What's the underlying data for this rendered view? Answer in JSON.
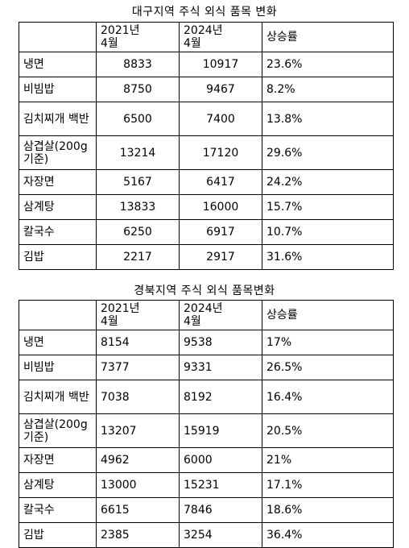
{
  "tables": [
    {
      "caption": "대구지역 주식 외식 품목 변화",
      "headers": [
        "",
        "2021년\n4월",
        "2024년\n4월",
        "상승률"
      ],
      "rows": [
        {
          "item": "냉면",
          "y2021": "8833",
          "y2024": "10917",
          "rate": "23.6%"
        },
        {
          "item": "비빔밥",
          "y2021": "8750",
          "y2024": "9467",
          "rate": "8.2%"
        },
        {
          "item": "김치찌개 백반",
          "y2021": "6500",
          "y2024": "7400",
          "rate": "13.8%"
        },
        {
          "item": "삼겹살(200g기준)",
          "y2021": "13214",
          "y2024": "17120",
          "rate": "29.6%"
        },
        {
          "item": "자장면",
          "y2021": "5167",
          "y2024": "6417",
          "rate": "24.2%"
        },
        {
          "item": "삼계탕",
          "y2021": "13833",
          "y2024": "16000",
          "rate": "15.7%"
        },
        {
          "item": "칼국수",
          "y2021": "6250",
          "y2024": "6917",
          "rate": "10.7%"
        },
        {
          "item": "김밥",
          "y2021": "2217",
          "y2024": "2917",
          "rate": "31.6%"
        }
      ]
    },
    {
      "caption": "경북지역 주식 외식 품목변화",
      "headers": [
        "",
        "2021년\n4월",
        "2024년\n4월",
        "상승률"
      ],
      "rows": [
        {
          "item": "냉면",
          "y2021": "8154",
          "y2024": "9538",
          "rate": "17%"
        },
        {
          "item": "비빔밥",
          "y2021": "7377",
          "y2024": "9331",
          "rate": "26.5%"
        },
        {
          "item": "김치찌개 백반",
          "y2021": "7038",
          "y2024": "8192",
          "rate": "16.4%"
        },
        {
          "item": "삼겹살(200g기준)",
          "y2021": "13207",
          "y2024": "15919",
          "rate": "20.5%"
        },
        {
          "item": "자장면",
          "y2021": "4962",
          "y2024": "6000",
          "rate": "21%"
        },
        {
          "item": "삼계탕",
          "y2021": "13000",
          "y2024": "15231",
          "rate": "17.1%"
        },
        {
          "item": "칼국수",
          "y2021": "6615",
          "y2024": "7846",
          "rate": "18.6%"
        },
        {
          "item": "김밥",
          "y2021": "2385",
          "y2024": "3254",
          "rate": "36.4%"
        }
      ]
    }
  ]
}
